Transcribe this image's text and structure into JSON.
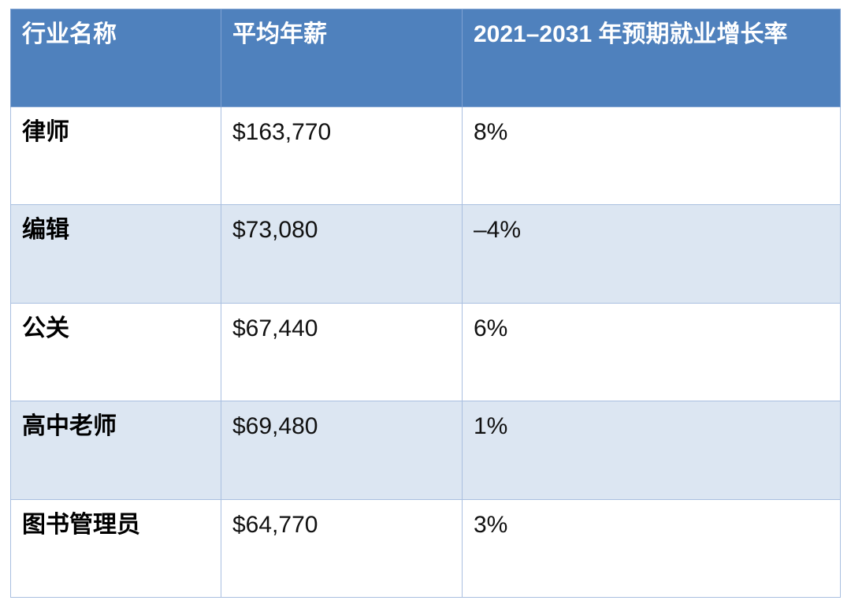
{
  "headers": [
    "行业名称",
    "平均年薪",
    "2021–2031 年预期就业增长率"
  ],
  "rows": [
    {
      "occupation": "律师",
      "salary": "$163,770",
      "growth": "8%"
    },
    {
      "occupation": "编辑",
      "salary": "$73,080",
      "growth": "–4%"
    },
    {
      "occupation": "公关",
      "salary": "$67,440",
      "growth": "6%"
    },
    {
      "occupation": "高中老师",
      "salary": "$69,480",
      "growth": "1%"
    },
    {
      "occupation": "图书管理员",
      "salary": "$64,770",
      "growth": "3%"
    }
  ],
  "colors": {
    "header_bg": "#4f81bd",
    "stripe_bg": "#dce6f2",
    "border": "#a9bfe0"
  }
}
